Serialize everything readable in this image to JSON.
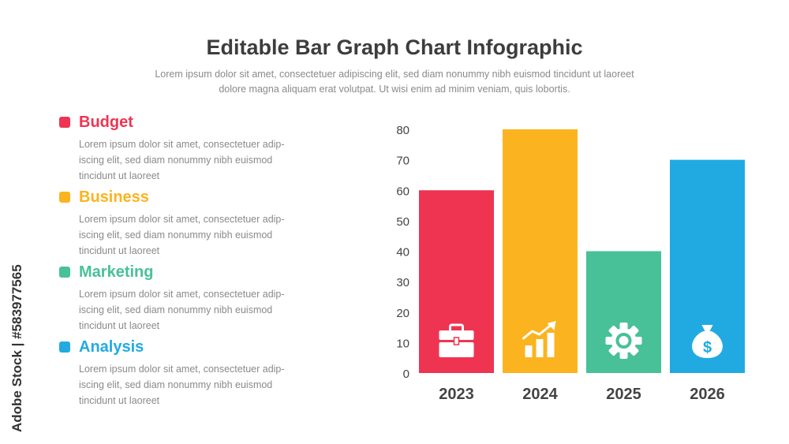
{
  "header": {
    "title": "Editable Bar Graph Chart Infographic",
    "subtitle_line1": "Lorem ipsum dolor sit amet, consectetuer adipiscing elit, sed diam nonummy nibh euismod tincidunt ut laoreet",
    "subtitle_line2": "dolore magna aliquam erat volutpat. Ut wisi enim ad minim veniam, quis lobortis."
  },
  "legend": [
    {
      "title": "Budget",
      "color": "#ef3452",
      "lines": [
        "Lorem ipsum dolor sit amet, consectetuer adip-",
        "iscing elit, sed diam nonummy nibh euismod",
        "tincidunt ut laoreet"
      ]
    },
    {
      "title": "Business",
      "color": "#fbb41f",
      "lines": [
        "Lorem ipsum dolor sit amet, consectetuer adip-",
        "iscing elit, sed diam nonummy nibh euismod",
        "tincidunt ut laoreet"
      ]
    },
    {
      "title": "Marketing",
      "color": "#48c198",
      "lines": [
        "Lorem ipsum dolor sit amet, consectetuer adip-",
        "iscing elit, sed diam nonummy nibh euismod",
        "tincidunt ut laoreet"
      ]
    },
    {
      "title": "Analysis",
      "color": "#21aae2",
      "lines": [
        "Lorem ipsum dolor sit amet, consectetuer adip-",
        "iscing elit, sed diam nonummy nibh euismod",
        "tincidunt ut laoreet"
      ]
    }
  ],
  "chart_data": {
    "type": "bar",
    "categories": [
      "2023",
      "2024",
      "2025",
      "2026"
    ],
    "values": [
      60,
      80,
      40,
      70
    ],
    "colors": [
      "#ef3452",
      "#fbb41f",
      "#48c198",
      "#21aae2"
    ],
    "icons": [
      "briefcase-icon",
      "growth-chart-icon",
      "gear-icon",
      "money-bag-icon"
    ],
    "yticks": [
      0,
      10,
      20,
      30,
      40,
      50,
      60,
      70,
      80
    ],
    "ylim": [
      0,
      80
    ],
    "title": "",
    "xlabel": "",
    "ylabel": "",
    "grid": false
  },
  "watermark": "Adobe Stock | #583977565"
}
